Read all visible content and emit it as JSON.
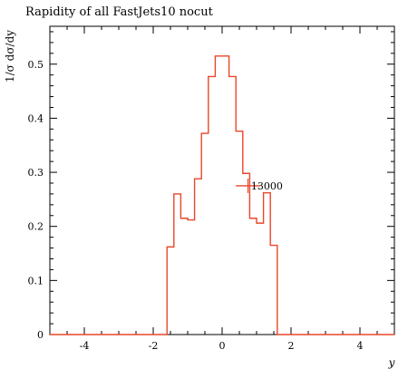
{
  "chart_data": {
    "type": "histogram",
    "title": "Rapidity of all FastJets10 nocut",
    "xlabel": "y",
    "ylabel": "1/σ dσ/dy",
    "xlim": [
      -5,
      5
    ],
    "ylim": [
      0,
      0.57
    ],
    "xticks": [
      -4,
      -2,
      0,
      2,
      4
    ],
    "xtick_labels": [
      "-4",
      "-2",
      "0",
      "2",
      "4"
    ],
    "yticks": [
      0,
      0.1,
      0.2,
      0.3,
      0.4,
      0.5
    ],
    "ytick_labels": [
      "0",
      "0.1",
      "0.2",
      "0.3",
      "0.4",
      "0.5"
    ],
    "bin_edges": [
      -5,
      -1.6,
      -1.4,
      -1.2,
      -1.0,
      -0.8,
      -0.6,
      -0.4,
      -0.2,
      0.0,
      0.2,
      0.4,
      0.6,
      0.8,
      1.0,
      1.2,
      1.4,
      1.6,
      5
    ],
    "values": [
      0,
      0.162,
      0.26,
      0.215,
      0.212,
      0.288,
      0.372,
      0.477,
      0.515,
      0.515,
      0.477,
      0.376,
      0.298,
      0.215,
      0.206,
      0.262,
      0.165,
      0
    ],
    "series": [
      {
        "name": "13000",
        "color": "#e8472a"
      }
    ],
    "legend": {
      "label": "13000",
      "x_range": [
        0.4,
        1.1
      ],
      "y": 0.275,
      "text_x": 1.3
    },
    "grid": false
  }
}
